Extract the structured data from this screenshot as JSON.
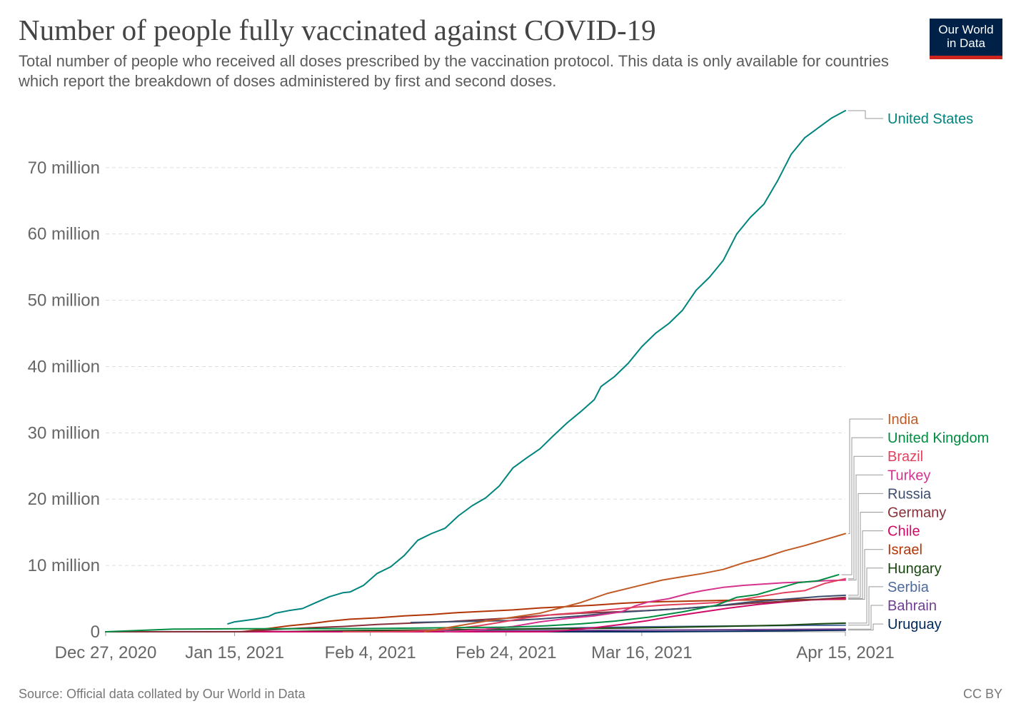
{
  "title": "Number of people fully vaccinated against COVID-19",
  "subtitle": "Total number of people who received all doses prescribed by the vaccination protocol. This data is only available for countries which report the breakdown of doses administered by first and second doses.",
  "logo": {
    "line1": "Our World",
    "line2": "in Data"
  },
  "source": "Source: Official data collated by Our World in Data",
  "license": "CC BY",
  "chart_data": {
    "type": "line",
    "x_ticks": [
      {
        "day": 0,
        "label": "Dec 27, 2020"
      },
      {
        "day": 19,
        "label": "Jan 15, 2021"
      },
      {
        "day": 39,
        "label": "Feb 4, 2021"
      },
      {
        "day": 59,
        "label": "Feb 24, 2021"
      },
      {
        "day": 79,
        "label": "Mar 16, 2021"
      },
      {
        "day": 109,
        "label": "Apr 15, 2021"
      }
    ],
    "y_ticks": [
      {
        "value": 0,
        "label": "0"
      },
      {
        "value": 10,
        "label": "10 million"
      },
      {
        "value": 20,
        "label": "20 million"
      },
      {
        "value": 30,
        "label": "30 million"
      },
      {
        "value": 40,
        "label": "40 million"
      },
      {
        "value": 50,
        "label": "50 million"
      },
      {
        "value": 60,
        "label": "60 million"
      },
      {
        "value": 70,
        "label": "70 million"
      }
    ],
    "x_range_days": [
      0,
      109
    ],
    "y_range_millions": [
      0,
      78.6
    ],
    "y_unit": "million",
    "grid": true,
    "series": [
      {
        "name": "United States",
        "color": "#00847e",
        "points": [
          [
            18,
            1.2
          ],
          [
            19,
            1.5
          ],
          [
            22,
            1.9
          ],
          [
            24,
            2.3
          ],
          [
            25,
            2.8
          ],
          [
            27,
            3.2
          ],
          [
            29,
            3.5
          ],
          [
            31,
            4.4
          ],
          [
            33,
            5.3
          ],
          [
            35,
            5.9
          ],
          [
            36,
            6.0
          ],
          [
            38,
            7.0
          ],
          [
            40,
            8.8
          ],
          [
            42,
            9.8
          ],
          [
            44,
            11.5
          ],
          [
            46,
            13.8
          ],
          [
            48,
            14.8
          ],
          [
            50,
            15.6
          ],
          [
            52,
            17.5
          ],
          [
            54,
            19.0
          ],
          [
            56,
            20.2
          ],
          [
            58,
            22.0
          ],
          [
            60,
            24.7
          ],
          [
            62,
            26.2
          ],
          [
            64,
            27.6
          ],
          [
            66,
            29.6
          ],
          [
            68,
            31.5
          ],
          [
            70,
            33.2
          ],
          [
            72,
            35.0
          ],
          [
            73,
            37.0
          ],
          [
            75,
            38.5
          ],
          [
            77,
            40.5
          ],
          [
            79,
            43.0
          ],
          [
            81,
            45.0
          ],
          [
            83,
            46.5
          ],
          [
            85,
            48.5
          ],
          [
            87,
            51.5
          ],
          [
            89,
            53.5
          ],
          [
            91,
            56.0
          ],
          [
            93,
            60.0
          ],
          [
            95,
            62.5
          ],
          [
            97,
            64.5
          ],
          [
            99,
            68.0
          ],
          [
            101,
            72.0
          ],
          [
            103,
            74.5
          ],
          [
            105,
            76.0
          ],
          [
            107,
            77.5
          ],
          [
            109,
            78.6
          ]
        ]
      },
      {
        "name": "India",
        "color": "#c15b25",
        "points": [
          [
            47,
            0
          ],
          [
            52,
            0.9
          ],
          [
            56,
            1.6
          ],
          [
            60,
            2.2
          ],
          [
            64,
            2.8
          ],
          [
            67,
            3.6
          ],
          [
            70,
            4.4
          ],
          [
            74,
            5.8
          ],
          [
            78,
            6.8
          ],
          [
            82,
            7.8
          ],
          [
            85,
            8.3
          ],
          [
            88,
            8.8
          ],
          [
            91,
            9.4
          ],
          [
            94,
            10.4
          ],
          [
            97,
            11.2
          ],
          [
            100,
            12.2
          ],
          [
            103,
            13.0
          ],
          [
            106,
            13.9
          ],
          [
            109,
            14.8
          ]
        ]
      },
      {
        "name": "United Kingdom",
        "color": "#008c41",
        "points": [
          [
            0,
            0
          ],
          [
            10,
            0.4
          ],
          [
            20,
            0.45
          ],
          [
            30,
            0.45
          ],
          [
            40,
            0.5
          ],
          [
            50,
            0.6
          ],
          [
            60,
            0.7
          ],
          [
            65,
            0.9
          ],
          [
            70,
            1.2
          ],
          [
            75,
            1.6
          ],
          [
            80,
            2.2
          ],
          [
            85,
            3.0
          ],
          [
            90,
            4.0
          ],
          [
            93,
            5.2
          ],
          [
            96,
            5.6
          ],
          [
            99,
            6.5
          ],
          [
            102,
            7.4
          ],
          [
            105,
            7.7
          ],
          [
            108,
            8.6
          ]
        ]
      },
      {
        "name": "Brazil",
        "color": "#e2415e",
        "points": [
          [
            35,
            0
          ],
          [
            40,
            0
          ],
          [
            45,
            0.1
          ],
          [
            50,
            0.3
          ],
          [
            55,
            0.9
          ],
          [
            58,
            1.4
          ],
          [
            62,
            2.1
          ],
          [
            66,
            2.6
          ],
          [
            70,
            2.9
          ],
          [
            74,
            3.3
          ],
          [
            78,
            3.7
          ],
          [
            82,
            4.0
          ],
          [
            86,
            4.2
          ],
          [
            90,
            4.4
          ],
          [
            94,
            4.9
          ],
          [
            97,
            5.4
          ],
          [
            100,
            5.9
          ],
          [
            103,
            6.2
          ],
          [
            106,
            7.3
          ],
          [
            109,
            8.0
          ]
        ]
      },
      {
        "name": "Turkey",
        "color": "#d6338f",
        "points": [
          [
            50,
            0
          ],
          [
            55,
            0.3
          ],
          [
            60,
            0.8
          ],
          [
            64,
            1.5
          ],
          [
            68,
            2.0
          ],
          [
            72,
            2.4
          ],
          [
            76,
            3.0
          ],
          [
            78,
            3.9
          ],
          [
            80,
            4.5
          ],
          [
            83,
            5.0
          ],
          [
            86,
            5.8
          ],
          [
            88,
            6.2
          ],
          [
            91,
            6.7
          ],
          [
            94,
            7.0
          ],
          [
            97,
            7.2
          ],
          [
            100,
            7.4
          ],
          [
            103,
            7.5
          ],
          [
            106,
            7.7
          ],
          [
            109,
            7.8
          ]
        ]
      },
      {
        "name": "Russia",
        "color": "#3d4d6d",
        "points": [
          [
            45,
            1.4
          ],
          [
            50,
            1.5
          ],
          [
            55,
            1.6
          ],
          [
            60,
            1.7
          ],
          [
            65,
            2.0
          ],
          [
            70,
            2.4
          ],
          [
            75,
            2.9
          ],
          [
            80,
            3.2
          ],
          [
            85,
            3.5
          ],
          [
            90,
            3.9
          ],
          [
            95,
            4.5
          ],
          [
            100,
            4.9
          ],
          [
            105,
            5.3
          ],
          [
            109,
            5.5
          ]
        ]
      },
      {
        "name": "Germany",
        "color": "#883039",
        "points": [
          [
            0,
            0
          ],
          [
            20,
            0
          ],
          [
            26,
            0.4
          ],
          [
            30,
            0.6
          ],
          [
            35,
            0.8
          ],
          [
            40,
            1.1
          ],
          [
            45,
            1.3
          ],
          [
            50,
            1.5
          ],
          [
            55,
            1.8
          ],
          [
            60,
            2.1
          ],
          [
            65,
            2.5
          ],
          [
            70,
            2.8
          ],
          [
            75,
            3.0
          ],
          [
            80,
            3.2
          ],
          [
            85,
            3.5
          ],
          [
            90,
            3.9
          ],
          [
            95,
            4.3
          ],
          [
            100,
            4.6
          ],
          [
            105,
            4.9
          ],
          [
            109,
            5.2
          ]
        ]
      },
      {
        "name": "Chile",
        "color": "#cf0a66",
        "points": [
          [
            0,
            0
          ],
          [
            65,
            0
          ],
          [
            68,
            0.2
          ],
          [
            72,
            0.6
          ],
          [
            76,
            1.1
          ],
          [
            80,
            1.7
          ],
          [
            84,
            2.4
          ],
          [
            88,
            3.0
          ],
          [
            92,
            3.6
          ],
          [
            96,
            4.1
          ],
          [
            100,
            4.5
          ],
          [
            104,
            4.8
          ],
          [
            109,
            5.0
          ]
        ]
      },
      {
        "name": "Israel",
        "color": "#b13507",
        "points": [
          [
            20,
            0
          ],
          [
            24,
            0.5
          ],
          [
            27,
            0.9
          ],
          [
            30,
            1.2
          ],
          [
            33,
            1.6
          ],
          [
            36,
            1.9
          ],
          [
            40,
            2.1
          ],
          [
            44,
            2.4
          ],
          [
            48,
            2.6
          ],
          [
            52,
            2.9
          ],
          [
            56,
            3.1
          ],
          [
            60,
            3.3
          ],
          [
            64,
            3.6
          ],
          [
            68,
            3.8
          ],
          [
            72,
            4.0
          ],
          [
            76,
            4.3
          ],
          [
            80,
            4.5
          ],
          [
            85,
            4.6
          ],
          [
            90,
            4.7
          ],
          [
            95,
            4.8
          ],
          [
            100,
            4.85
          ],
          [
            109,
            4.9
          ]
        ]
      },
      {
        "name": "Hungary",
        "color": "#18470f",
        "points": [
          [
            25,
            0
          ],
          [
            30,
            0.1
          ],
          [
            40,
            0.2
          ],
          [
            50,
            0.3
          ],
          [
            60,
            0.4
          ],
          [
            70,
            0.5
          ],
          [
            80,
            0.6
          ],
          [
            90,
            0.8
          ],
          [
            100,
            1.0
          ],
          [
            105,
            1.2
          ],
          [
            109,
            1.3
          ]
        ]
      },
      {
        "name": "Serbia",
        "color": "#4c6a9c",
        "points": [
          [
            30,
            0
          ],
          [
            40,
            0.1
          ],
          [
            50,
            0.25
          ],
          [
            60,
            0.4
          ],
          [
            70,
            0.6
          ],
          [
            80,
            0.75
          ],
          [
            90,
            0.85
          ],
          [
            100,
            0.95
          ],
          [
            109,
            1.0
          ]
        ]
      },
      {
        "name": "Bahrain",
        "color": "#6d3e91",
        "points": [
          [
            0,
            0
          ],
          [
            40,
            0.05
          ],
          [
            60,
            0.15
          ],
          [
            80,
            0.25
          ],
          [
            100,
            0.35
          ],
          [
            109,
            0.4
          ]
        ]
      },
      {
        "name": "Uruguay",
        "color": "#00295b",
        "points": [
          [
            0,
            0
          ],
          [
            70,
            0
          ],
          [
            80,
            0
          ],
          [
            90,
            0.05
          ],
          [
            100,
            0.15
          ],
          [
            109,
            0.25
          ]
        ]
      }
    ]
  }
}
